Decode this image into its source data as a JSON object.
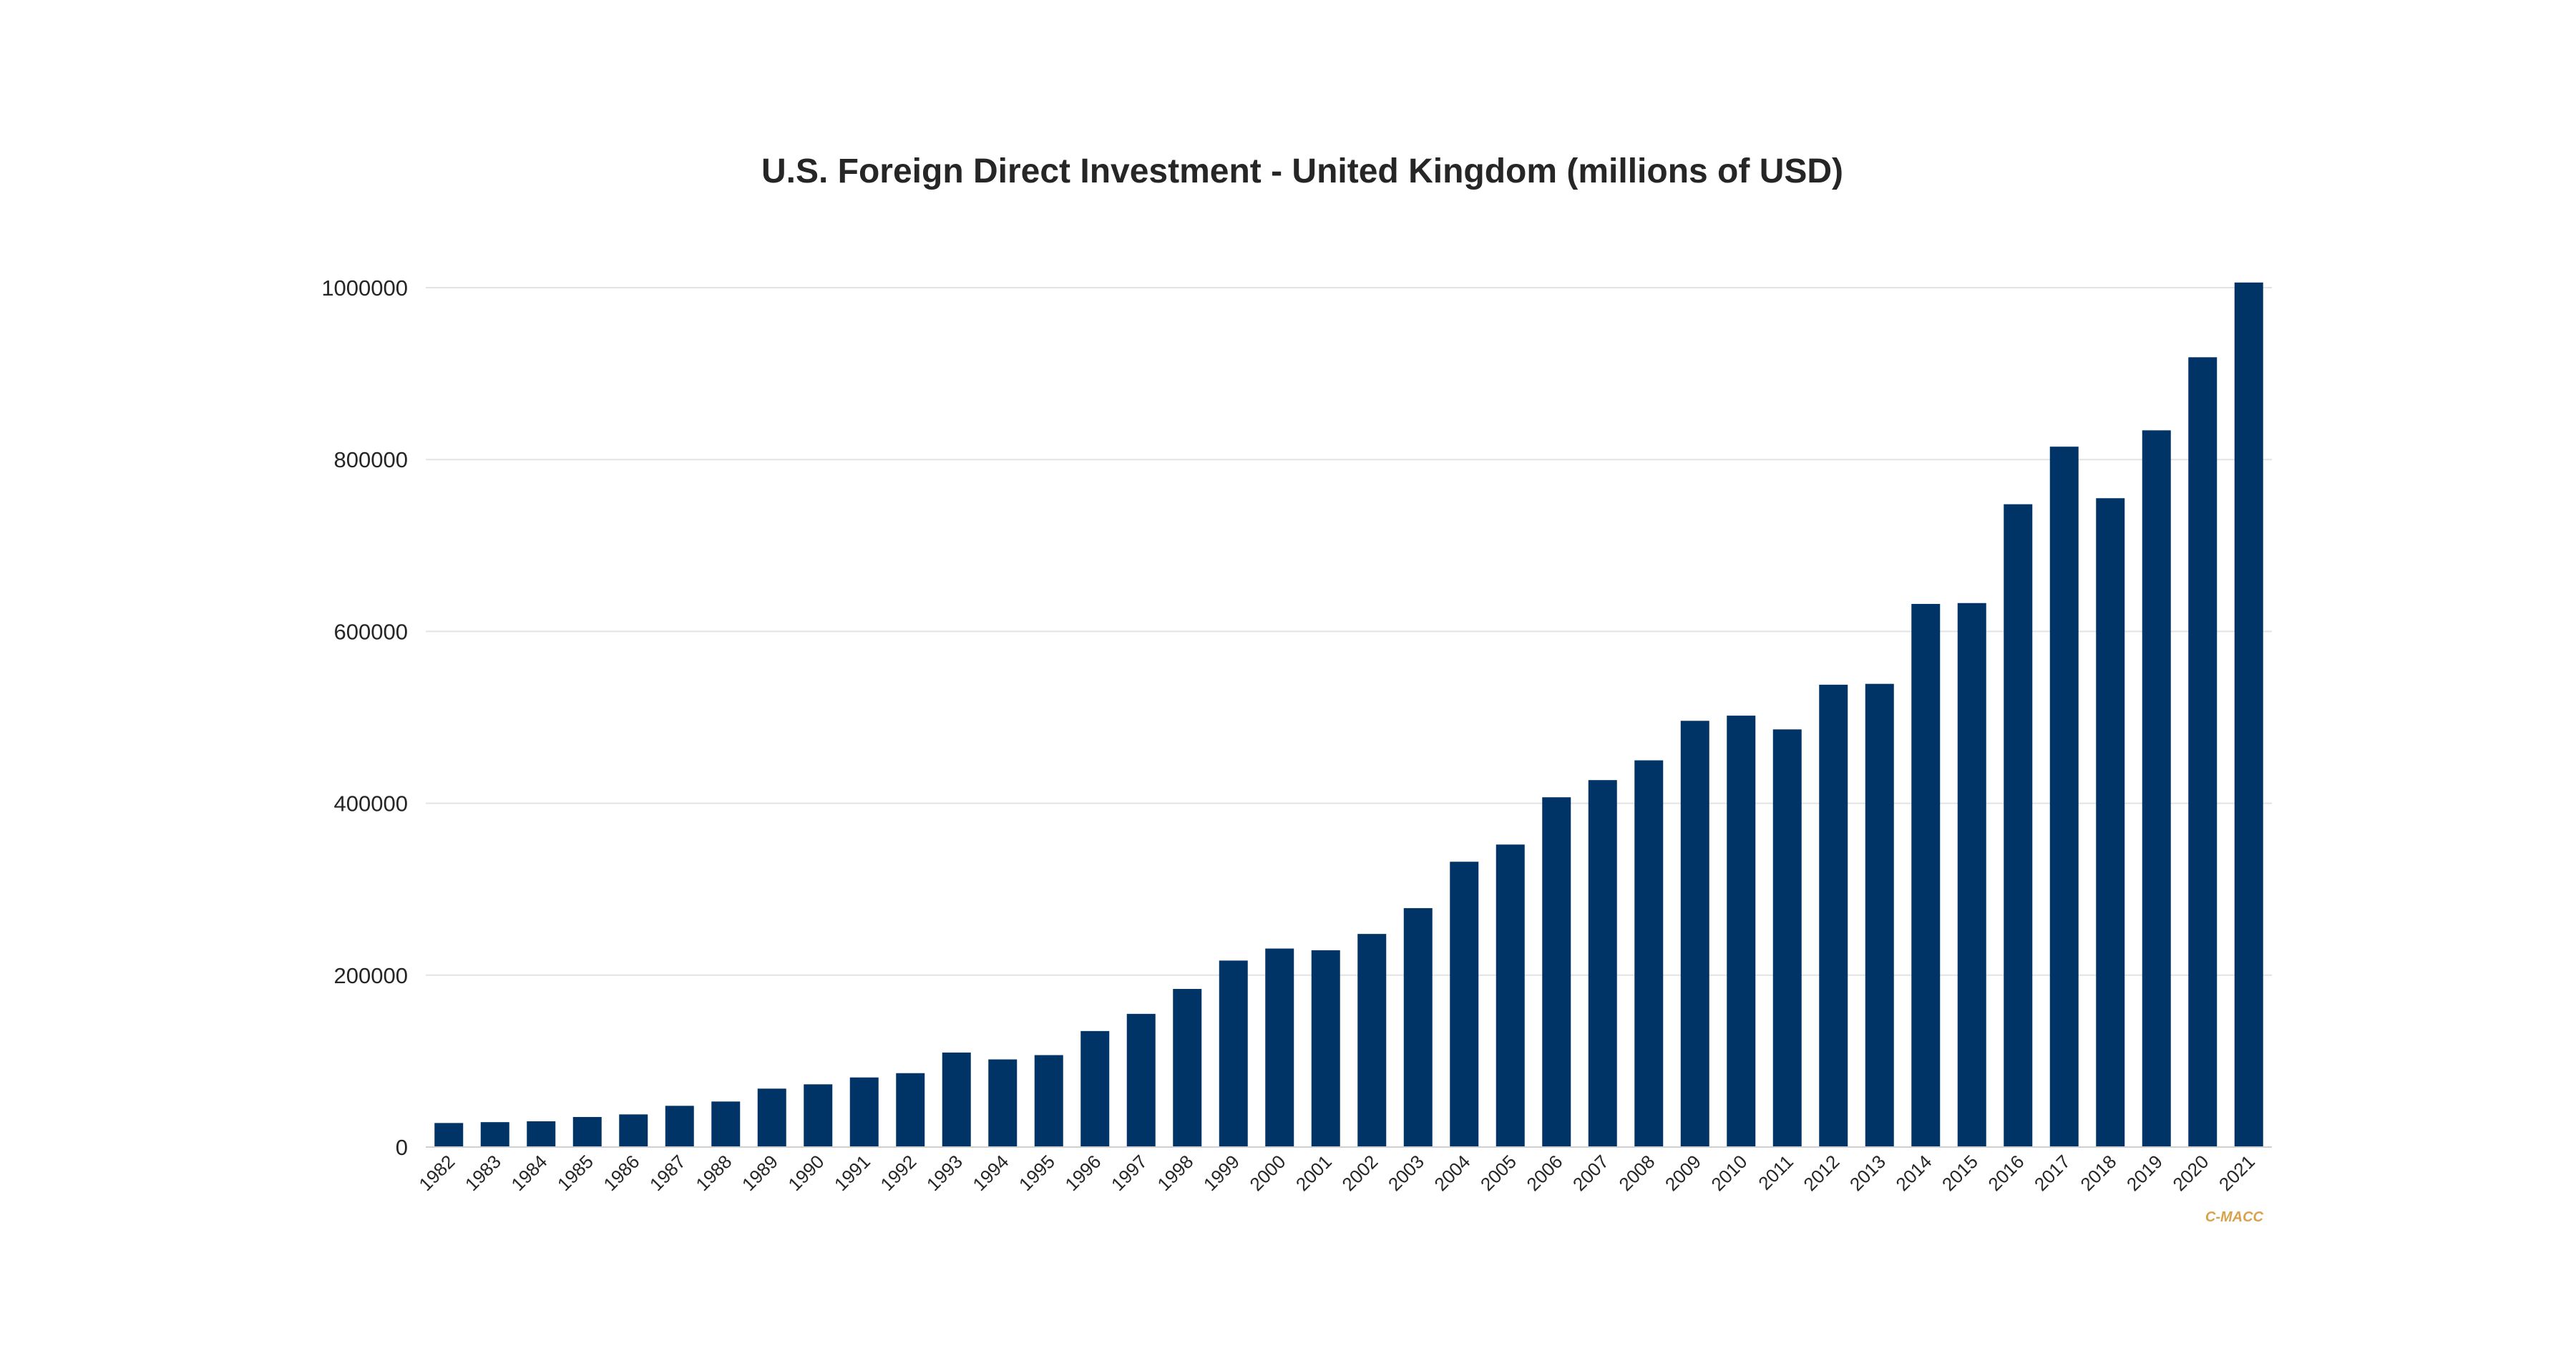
{
  "colors": {
    "bar": "#003366",
    "watermark": "#d9a24a"
  },
  "watermark": "C-MACC",
  "chart_data": {
    "type": "bar",
    "title": "U.S. Foreign Direct Investment - United Kingdom (millions of USD)",
    "xlabel": "",
    "ylabel": "",
    "ylim": [
      0,
      1000000
    ],
    "yticks": [
      "0",
      "200000",
      "400000",
      "600000",
      "800000",
      "1000000"
    ],
    "grid": true,
    "legend": "none",
    "categories": [
      "1982",
      "1983",
      "1984",
      "1985",
      "1986",
      "1987",
      "1988",
      "1989",
      "1990",
      "1991",
      "1992",
      "1993",
      "1994",
      "1995",
      "1996",
      "1997",
      "1998",
      "1999",
      "2000",
      "2001",
      "2002",
      "2003",
      "2004",
      "2005",
      "2006",
      "2007",
      "2008",
      "2009",
      "2010",
      "2011",
      "2012",
      "2013",
      "2014",
      "2015",
      "2016",
      "2017",
      "2018",
      "2019",
      "2020",
      "2021"
    ],
    "values": [
      28000,
      29000,
      30000,
      35000,
      38000,
      48000,
      53000,
      68000,
      73000,
      81000,
      86000,
      110000,
      102000,
      107000,
      135000,
      155000,
      184000,
      217000,
      231000,
      229000,
      248000,
      278000,
      332000,
      352000,
      407000,
      427000,
      450000,
      496000,
      502000,
      486000,
      538000,
      539000,
      632000,
      633000,
      748000,
      815000,
      755000,
      834000,
      919000,
      1006000
    ]
  }
}
